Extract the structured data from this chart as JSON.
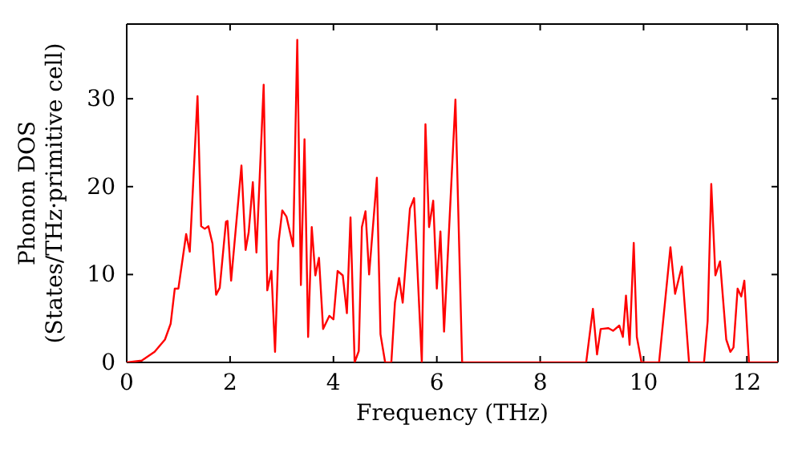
{
  "chart_data": {
    "type": "line",
    "xlabel": "Frequency (THz)",
    "ylabel": "Phonon DOS\n(States/THz·primitive cell)",
    "xlim": [
      0,
      12.6
    ],
    "ylim": [
      0,
      38.5
    ],
    "xticks": [
      0,
      2,
      4,
      6,
      8,
      10,
      12
    ],
    "yticks": [
      0,
      10,
      20,
      30
    ],
    "marker": "none",
    "line_style": "solid",
    "series": [
      {
        "color": "#ff0000",
        "x": [
          0,
          0.29,
          0.54,
          0.74,
          0.85,
          0.93,
          1.0,
          1.15,
          1.22,
          1.37,
          1.44,
          1.51,
          1.58,
          1.66,
          1.73,
          1.8,
          1.92,
          1.95,
          2.02,
          2.22,
          2.3,
          2.36,
          2.44,
          2.51,
          2.65,
          2.72,
          2.8,
          2.87,
          2.94,
          3.01,
          3.09,
          3.22,
          3.3,
          3.37,
          3.44,
          3.51,
          3.58,
          3.65,
          3.72,
          3.8,
          3.92,
          4.0,
          4.08,
          4.18,
          4.26,
          4.33,
          4.41,
          4.49,
          4.55,
          4.62,
          4.69,
          4.84,
          4.91,
          5.0,
          5.12,
          5.19,
          5.27,
          5.34,
          5.48,
          5.56,
          5.71,
          5.78,
          5.85,
          5.93,
          6.0,
          6.07,
          6.14,
          6.36,
          6.49,
          8.89,
          9.02,
          9.1,
          9.17,
          9.32,
          9.41,
          9.53,
          9.6,
          9.66,
          9.73,
          9.81,
          9.87,
          9.96,
          10.3,
          10.52,
          10.61,
          10.74,
          10.88,
          11.17,
          11.24,
          11.31,
          11.39,
          11.48,
          11.6,
          11.68,
          11.74,
          11.82,
          11.89,
          11.95,
          12.04,
          12.6
        ],
        "values": [
          0,
          0.2,
          1.2,
          2.6,
          4.4,
          8.4,
          8.4,
          14.6,
          12.6,
          30.3,
          15.5,
          15.2,
          15.5,
          13.5,
          7.7,
          8.5,
          16.0,
          16.1,
          9.3,
          22.4,
          12.8,
          14.8,
          20.5,
          12.5,
          31.6,
          8.2,
          10.4,
          1.2,
          13.8,
          17.3,
          16.6,
          13.2,
          36.7,
          8.8,
          25.4,
          2.9,
          15.4,
          9.9,
          11.9,
          3.8,
          5.3,
          4.9,
          10.4,
          9.9,
          5.6,
          16.5,
          0,
          1.3,
          15.4,
          17.2,
          10,
          21.0,
          3.2,
          0,
          0,
          6.8,
          9.6,
          6.8,
          17.5,
          18.7,
          0,
          27.1,
          15.4,
          18.4,
          8.4,
          14.9,
          3.5,
          29.9,
          0,
          0,
          6.1,
          0.9,
          3.8,
          3.9,
          3.6,
          4.2,
          2.9,
          7.6,
          2.0,
          13.6,
          2.9,
          0,
          0,
          13.1,
          7.8,
          10.9,
          0,
          0,
          4.7,
          20.3,
          9.9,
          11.5,
          2.6,
          1.2,
          1.7,
          8.4,
          7.5,
          9.3,
          0,
          0
        ]
      }
    ]
  }
}
